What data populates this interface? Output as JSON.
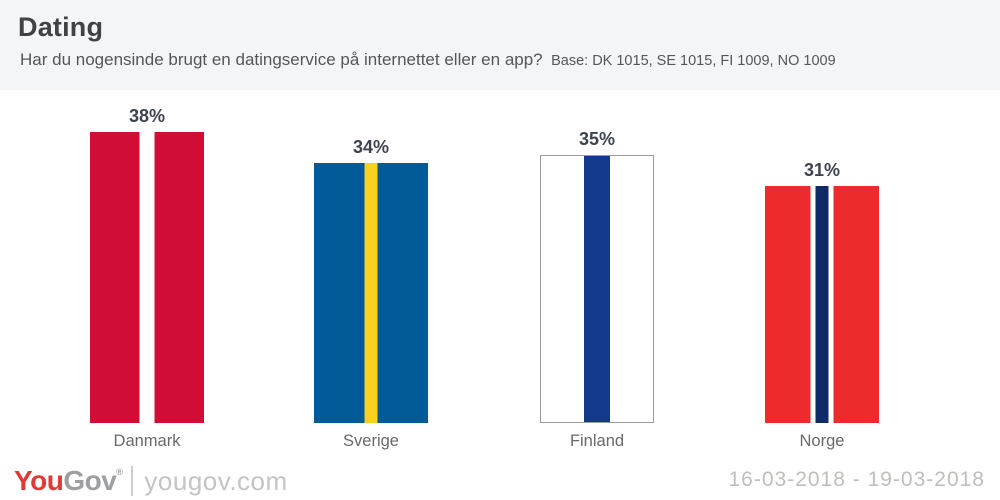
{
  "header": {
    "title": "Dating",
    "question": "Har du nogensinde brugt en datingservice på internettet eller en app?",
    "base_note": "Base: DK 1015, SE 1015, FI 1009, NO 1009"
  },
  "chart_data": {
    "type": "bar",
    "title": "Dating",
    "categories": [
      "Danmark",
      "Sverige",
      "Finland",
      "Norge"
    ],
    "values": [
      38,
      34,
      35,
      31
    ],
    "labels": [
      "38%",
      "34%",
      "35%",
      "31%"
    ],
    "unit": "%",
    "ylim": [
      0,
      40
    ],
    "grid": false,
    "legend": "none",
    "bar_style": "vertical-flag-stripes",
    "flags": [
      {
        "country": "Danmark",
        "base_color": "#d00d35",
        "border": null,
        "stripes": [
          {
            "color": "#ffffff",
            "width": 15
          }
        ]
      },
      {
        "country": "Sverige",
        "base_color": "#005b98",
        "border": null,
        "stripes": [
          {
            "color": "#fcd01e",
            "width": 13
          }
        ]
      },
      {
        "country": "Finland",
        "base_color": "#ffffff",
        "border": "#9b9b9b",
        "stripes": [
          {
            "color": "#12398b",
            "width": 26
          }
        ]
      },
      {
        "country": "Norge",
        "base_color": "#ee2b2c",
        "border": null,
        "stripes": [
          {
            "color": "#ffffff",
            "width": 5
          },
          {
            "color": "#0e2a67",
            "width": 13
          },
          {
            "color": "#ffffff",
            "width": 5
          }
        ]
      }
    ]
  },
  "footer": {
    "logo_you": "You",
    "logo_gov": "Gov",
    "registered_mark": "®",
    "website": "yougov.com",
    "date_range": "16-03-2018 - 19-03-2018"
  },
  "colors": {
    "header_bg": "#f4f5f6",
    "value_label": "#3d4450",
    "logo_red": "#e03a37",
    "logo_gray": "#9d9fa2"
  }
}
